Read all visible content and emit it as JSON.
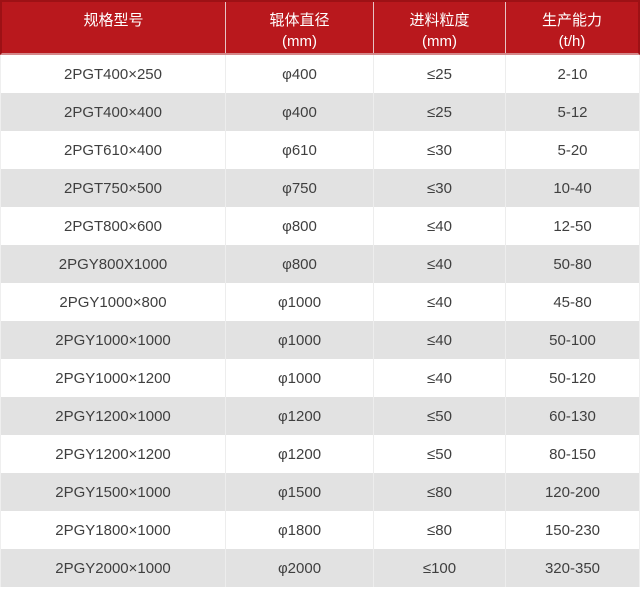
{
  "header": {
    "columns": [
      {
        "title": "规格型号",
        "unit": ""
      },
      {
        "title": "辊体直径",
        "unit": "(mm)"
      },
      {
        "title": "进料粒度",
        "unit": "(mm)"
      },
      {
        "title": "生产能力",
        "unit": "(t/h)"
      }
    ]
  },
  "rows": [
    {
      "model": "2PGT400×250",
      "roller_diameter": "φ400",
      "feed_size": "≤25",
      "capacity": "2-10"
    },
    {
      "model": "2PGT400×400",
      "roller_diameter": "φ400",
      "feed_size": "≤25",
      "capacity": "5-12"
    },
    {
      "model": "2PGT610×400",
      "roller_diameter": "φ610",
      "feed_size": "≤30",
      "capacity": "5-20"
    },
    {
      "model": "2PGT750×500",
      "roller_diameter": "φ750",
      "feed_size": "≤30",
      "capacity": "10-40"
    },
    {
      "model": "2PGT800×600",
      "roller_diameter": "φ800",
      "feed_size": "≤40",
      "capacity": "12-50"
    },
    {
      "model": "2PGY800X1000",
      "roller_diameter": "φ800",
      "feed_size": "≤40",
      "capacity": "50-80"
    },
    {
      "model": "2PGY1000×800",
      "roller_diameter": "φ1000",
      "feed_size": "≤40",
      "capacity": "45-80"
    },
    {
      "model": "2PGY1000×1000",
      "roller_diameter": "φ1000",
      "feed_size": "≤40",
      "capacity": "50-100"
    },
    {
      "model": "2PGY1000×1200",
      "roller_diameter": "φ1000",
      "feed_size": "≤40",
      "capacity": "50-120"
    },
    {
      "model": "2PGY1200×1000",
      "roller_diameter": "φ1200",
      "feed_size": "≤50",
      "capacity": "60-130"
    },
    {
      "model": "2PGY1200×1200",
      "roller_diameter": "φ1200",
      "feed_size": "≤50",
      "capacity": "80-150"
    },
    {
      "model": "2PGY1500×1000",
      "roller_diameter": "φ1500",
      "feed_size": "≤80",
      "capacity": "120-200"
    },
    {
      "model": "2PGY1800×1000",
      "roller_diameter": "φ1800",
      "feed_size": "≤80",
      "capacity": "150-230"
    },
    {
      "model": "2PGY2000×1000",
      "roller_diameter": "φ2000",
      "feed_size": "≤100",
      "capacity": "320-350"
    }
  ],
  "colors": {
    "header_bg": "#b9181d",
    "header_border": "#9d1115",
    "header_bottom_line": "#d4888a",
    "header_divider": "#e6c3c4",
    "header_text": "#ffffff",
    "row_bg": "#ffffff",
    "row_alt_bg": "#e2e2e2",
    "cell_text": "#3f3f3f",
    "body_divider": "#ededed",
    "outer_border": "#efefef"
  }
}
